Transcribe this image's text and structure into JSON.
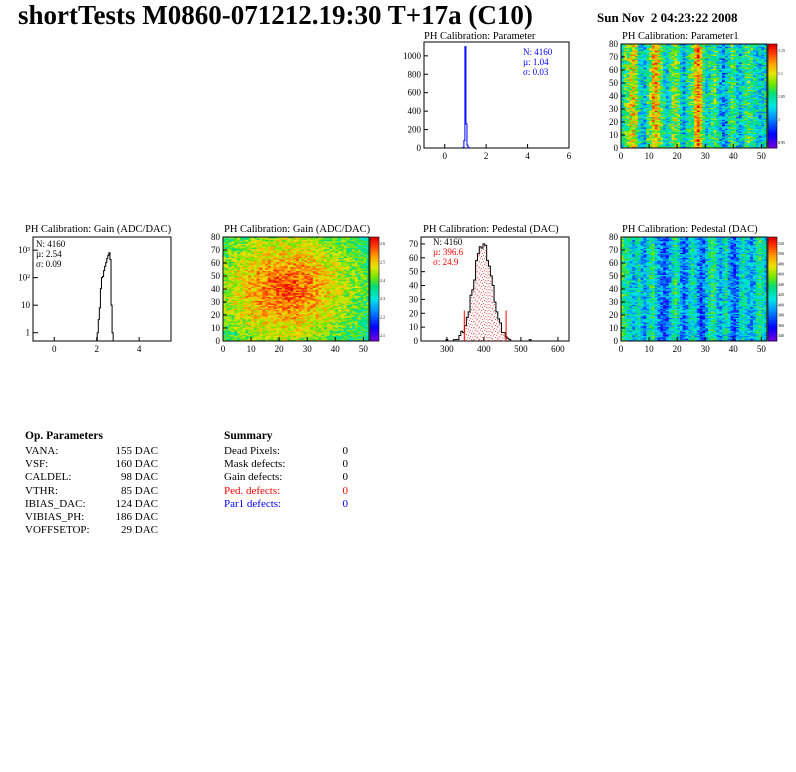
{
  "header": {
    "title": "shortTests M0860-071212.19:30 T+17a (C10)",
    "date": "Sun Nov  2 04:23:22 2008"
  },
  "colors": {
    "blue_hist": "#0000ff",
    "red_text": "#ff0000",
    "blue_text": "#0000ff",
    "frame": "#000000"
  },
  "chart_data": [
    {
      "id": "param-hist",
      "type": "histogram",
      "title": "PH Calibration: Parameter",
      "xlim": [
        -1,
        6
      ],
      "ylim": [
        0,
        1150
      ],
      "xticks": [
        0,
        2,
        4,
        6
      ],
      "yticks": [
        0,
        200,
        400,
        600,
        800,
        1000
      ],
      "color": "#0000ff",
      "bins_x": [
        0.9,
        0.95,
        1.0,
        1.05,
        1.1,
        1.15,
        1.2
      ],
      "bins_y": [
        5,
        80,
        1100,
        260,
        30,
        5,
        0
      ],
      "stats": {
        "n": "N: 4160",
        "mean": "µ: 1.04",
        "sigma": "σ: 0.03"
      }
    },
    {
      "id": "param1-map",
      "type": "heatmap",
      "title": "PH Calibration: Parameter1",
      "xlim": [
        0,
        52
      ],
      "ylim": [
        0,
        80
      ],
      "xticks": [
        0,
        10,
        20,
        30,
        40,
        50
      ],
      "yticks": [
        0,
        10,
        20,
        30,
        40,
        50,
        60,
        70,
        80
      ],
      "zticks": [
        "1.15",
        "1.1",
        "1.05",
        "1",
        "0.95"
      ],
      "column_profile": [
        0.45,
        0.55,
        0.6,
        0.7,
        0.75,
        0.65,
        0.45,
        0.4,
        0.35,
        0.5,
        0.6,
        0.75,
        0.8,
        0.7,
        0.55,
        0.45,
        0.4,
        0.5,
        0.6,
        0.65,
        0.55,
        0.4,
        0.35,
        0.45,
        0.5,
        0.6,
        0.75,
        0.85,
        0.7,
        0.5,
        0.4,
        0.45,
        0.5,
        0.55,
        0.45,
        0.35,
        0.3,
        0.35,
        0.45,
        0.55,
        0.5,
        0.4,
        0.35,
        0.45,
        0.5,
        0.55,
        0.5,
        0.45,
        0.4,
        0.35,
        0.4,
        0.45
      ],
      "noise": 0.18
    },
    {
      "id": "gain-hist",
      "type": "histogram",
      "title": "PH Calibration: Gain (ADC/DAC)",
      "log_y": true,
      "xlim": [
        -1,
        5.5
      ],
      "ylim": [
        0.5,
        3000
      ],
      "xticks": [
        0,
        2,
        4
      ],
      "yticks_log": [
        1,
        10,
        100,
        1000
      ],
      "ytick_labels": [
        "1",
        "10",
        "10²",
        "10³"
      ],
      "color": "#000000",
      "bins_x": [
        2.05,
        2.1,
        2.15,
        2.2,
        2.25,
        2.3,
        2.35,
        2.4,
        2.45,
        2.5,
        2.55,
        2.6,
        2.65,
        2.7,
        2.75
      ],
      "bins_y": [
        1,
        3,
        8,
        40,
        100,
        110,
        180,
        260,
        350,
        500,
        650,
        800,
        450,
        10,
        1
      ],
      "stats": {
        "n": "N: 4160",
        "mean": "µ: 2.54",
        "sigma": "σ: 0.09"
      }
    },
    {
      "id": "gain-map",
      "type": "heatmap",
      "title": "PH Calibration: Gain (ADC/DAC)",
      "xlim": [
        0,
        52
      ],
      "ylim": [
        0,
        80
      ],
      "xticks": [
        0,
        10,
        20,
        30,
        40,
        50
      ],
      "yticks": [
        0,
        10,
        20,
        30,
        40,
        50,
        60,
        70,
        80
      ],
      "zticks": [
        "2.6",
        "2.5",
        "2.4",
        "2.3",
        "2.2",
        "2.1"
      ],
      "center": [
        22,
        40
      ],
      "noise": 0.12
    },
    {
      "id": "ped-hist",
      "type": "histogram",
      "title": "PH Calibration: Pedestal (DAC)",
      "xlim": [
        230,
        630
      ],
      "ylim": [
        0,
        75
      ],
      "xticks": [
        300,
        400,
        500,
        600
      ],
      "yticks": [
        0,
        10,
        20,
        30,
        40,
        50,
        60,
        70
      ],
      "color": "#000000",
      "gauss": {
        "mean": 396.6,
        "sigma": 24.9,
        "peak": 70
      },
      "cut_lines": [
        347,
        460
      ],
      "stats": {
        "n": "N: 4160",
        "mean": "µ: 396.6",
        "sigma": "σ: 24.9"
      }
    },
    {
      "id": "ped-map",
      "type": "heatmap",
      "title": "PH Calibration: Pedestal (DAC)",
      "xlim": [
        0,
        52
      ],
      "ylim": [
        0,
        80
      ],
      "xticks": [
        0,
        10,
        20,
        30,
        40,
        50
      ],
      "yticks": [
        0,
        10,
        20,
        30,
        40,
        50,
        60,
        70,
        80
      ],
      "zticks": [
        "520",
        "500",
        "480",
        "460",
        "440",
        "420",
        "400",
        "380",
        "360",
        "340"
      ],
      "column_profile": [
        0.55,
        0.5,
        0.45,
        0.4,
        0.35,
        0.4,
        0.45,
        0.35,
        0.3,
        0.4,
        0.45,
        0.5,
        0.4,
        0.3,
        0.25,
        0.2,
        0.25,
        0.35,
        0.45,
        0.5,
        0.4,
        0.3,
        0.25,
        0.3,
        0.4,
        0.45,
        0.4,
        0.3,
        0.2,
        0.25,
        0.35,
        0.45,
        0.5,
        0.45,
        0.35,
        0.3,
        0.4,
        0.45,
        0.35,
        0.25,
        0.2,
        0.3,
        0.4,
        0.45,
        0.4,
        0.35,
        0.3,
        0.35,
        0.45,
        0.5,
        0.45,
        0.4
      ],
      "noise": 0.15
    }
  ],
  "op_params": {
    "title": "Op. Parameters",
    "rows": [
      {
        "name": "VANA:",
        "value": "155 DAC"
      },
      {
        "name": "VSF:",
        "value": "160 DAC"
      },
      {
        "name": "CALDEL:",
        "value": "98 DAC"
      },
      {
        "name": "VTHR:",
        "value": "85 DAC"
      },
      {
        "name": "IBIAS_DAC:",
        "value": "124 DAC"
      },
      {
        "name": "VIBIAS_PH:",
        "value": "186 DAC"
      },
      {
        "name": "VOFFSETOP:",
        "value": "29 DAC"
      }
    ]
  },
  "summary": {
    "title": "Summary",
    "rows": [
      {
        "name": "Dead Pixels:",
        "value": "0",
        "color": "#000000"
      },
      {
        "name": "Mask defects:",
        "value": "0",
        "color": "#000000"
      },
      {
        "name": "Gain defects:",
        "value": "0",
        "color": "#000000"
      },
      {
        "name": "Ped. defects:",
        "value": "0",
        "color": "#ff0000"
      },
      {
        "name": "Par1 defects:",
        "value": "0",
        "color": "#0000ff"
      }
    ]
  }
}
